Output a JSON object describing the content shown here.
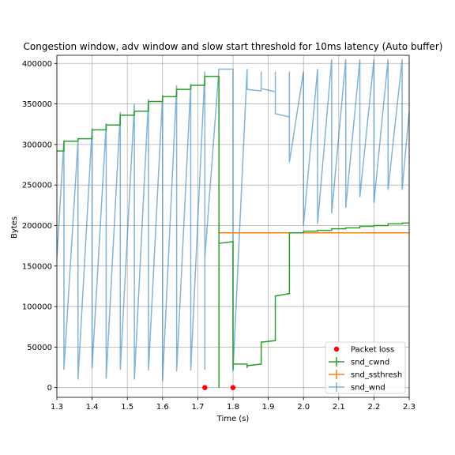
{
  "chart_data": {
    "type": "line",
    "title": "Congestion window, adv window and slow start threshold for 10ms latency (Auto buffer)",
    "xlabel": "Time (s)",
    "ylabel": "Bytes",
    "xlim": [
      1.3,
      2.3
    ],
    "ylim": [
      -12000,
      410000
    ],
    "xticks": [
      1.3,
      1.4,
      1.5,
      1.6,
      1.7,
      1.8,
      1.9,
      2.0,
      2.1,
      2.2,
      2.3
    ],
    "xtick_labels": [
      "1.3",
      "1.4",
      "1.5",
      "1.6",
      "1.7",
      "1.8",
      "1.9",
      "2.0",
      "2.1",
      "2.2",
      "2.3"
    ],
    "yticks": [
      0,
      50000,
      100000,
      150000,
      200000,
      250000,
      300000,
      350000,
      400000
    ],
    "ytick_labels": [
      "0",
      "50000",
      "100000",
      "150000",
      "200000",
      "250000",
      "300000",
      "350000",
      "400000"
    ],
    "grid": true,
    "legend_position": "lower-right",
    "colors": {
      "packet_loss": "#ff0000",
      "snd_cwnd": "#2ca02c",
      "snd_ssthresh": "#ff7f0e",
      "snd_wnd": "#1f77b4"
    },
    "series": [
      {
        "name": "Packet loss",
        "kind": "points",
        "x": [
          1.72,
          1.8
        ],
        "y": [
          0,
          0
        ]
      },
      {
        "name": "snd_cwnd",
        "kind": "step",
        "points": [
          [
            1.3,
            292000
          ],
          [
            1.32,
            292000
          ],
          [
            1.32,
            304000
          ],
          [
            1.36,
            304000
          ],
          [
            1.36,
            307000
          ],
          [
            1.4,
            307000
          ],
          [
            1.4,
            318000
          ],
          [
            1.44,
            318000
          ],
          [
            1.44,
            324000
          ],
          [
            1.48,
            324000
          ],
          [
            1.48,
            336000
          ],
          [
            1.52,
            336000
          ],
          [
            1.52,
            341000
          ],
          [
            1.56,
            341000
          ],
          [
            1.56,
            353000
          ],
          [
            1.6,
            353000
          ],
          [
            1.6,
            359000
          ],
          [
            1.64,
            359000
          ],
          [
            1.64,
            368000
          ],
          [
            1.68,
            368000
          ],
          [
            1.68,
            373000
          ],
          [
            1.72,
            373000
          ],
          [
            1.72,
            384000
          ],
          [
            1.76,
            384000
          ],
          [
            1.76,
            0
          ],
          [
            1.76,
            178000
          ],
          [
            1.8,
            180000
          ],
          [
            1.8,
            22000
          ],
          [
            1.8,
            29000
          ],
          [
            1.84,
            29000
          ],
          [
            1.84,
            24000
          ],
          [
            1.84,
            27000
          ],
          [
            1.88,
            29000
          ],
          [
            1.88,
            56000
          ],
          [
            1.92,
            58000
          ],
          [
            1.92,
            113000
          ],
          [
            1.96,
            116000
          ],
          [
            1.96,
            191000
          ],
          [
            2.0,
            191000
          ],
          [
            2.0,
            193000
          ],
          [
            2.04,
            193000
          ],
          [
            2.04,
            194000
          ],
          [
            2.08,
            194000
          ],
          [
            2.08,
            196000
          ],
          [
            2.12,
            196000
          ],
          [
            2.12,
            197000
          ],
          [
            2.16,
            197000
          ],
          [
            2.16,
            199000
          ],
          [
            2.2,
            199000
          ],
          [
            2.2,
            200000
          ],
          [
            2.24,
            200000
          ],
          [
            2.24,
            202000
          ],
          [
            2.28,
            202000
          ],
          [
            2.28,
            203000
          ],
          [
            2.3,
            203000
          ]
        ]
      },
      {
        "name": "snd_ssthresh",
        "kind": "line",
        "points": [
          [
            1.76,
            191000
          ],
          [
            2.3,
            191000
          ]
        ]
      },
      {
        "name": "snd_wnd",
        "kind": "line",
        "points": [
          [
            1.3,
            160000
          ],
          [
            1.32,
            305000
          ],
          [
            1.32,
            22000
          ],
          [
            1.36,
            305000
          ],
          [
            1.36,
            10000
          ],
          [
            1.4,
            320000
          ],
          [
            1.4,
            24000
          ],
          [
            1.44,
            326000
          ],
          [
            1.44,
            11000
          ],
          [
            1.48,
            340000
          ],
          [
            1.48,
            22000
          ],
          [
            1.52,
            350000
          ],
          [
            1.52,
            10000
          ],
          [
            1.56,
            356000
          ],
          [
            1.56,
            21000
          ],
          [
            1.6,
            361000
          ],
          [
            1.6,
            8000
          ],
          [
            1.64,
            373000
          ],
          [
            1.64,
            20000
          ],
          [
            1.68,
            375000
          ],
          [
            1.68,
            21000
          ],
          [
            1.72,
            390000
          ],
          [
            1.72,
            22000
          ],
          [
            1.72,
            160000
          ],
          [
            1.76,
            393000
          ],
          [
            1.8,
            393000
          ],
          [
            1.8,
            20000
          ],
          [
            1.84,
            393000
          ],
          [
            1.84,
            368000
          ],
          [
            1.88,
            366000
          ],
          [
            1.88,
            390000
          ],
          [
            1.88,
            369000
          ],
          [
            1.92,
            365000
          ],
          [
            1.92,
            390000
          ],
          [
            1.92,
            338000
          ],
          [
            1.96,
            334000
          ],
          [
            1.96,
            390000
          ],
          [
            1.96,
            278000
          ],
          [
            2.0,
            390000
          ],
          [
            2.0,
            200000
          ],
          [
            2.04,
            393000
          ],
          [
            2.04,
            202000
          ],
          [
            2.08,
            405000
          ],
          [
            2.08,
            215000
          ],
          [
            2.12,
            405000
          ],
          [
            2.12,
            222000
          ],
          [
            2.16,
            405000
          ],
          [
            2.16,
            235000
          ],
          [
            2.2,
            405000
          ],
          [
            2.2,
            228000
          ],
          [
            2.24,
            405000
          ],
          [
            2.24,
            244000
          ],
          [
            2.28,
            405000
          ],
          [
            2.28,
            244000
          ],
          [
            2.3,
            340000
          ]
        ]
      }
    ]
  }
}
